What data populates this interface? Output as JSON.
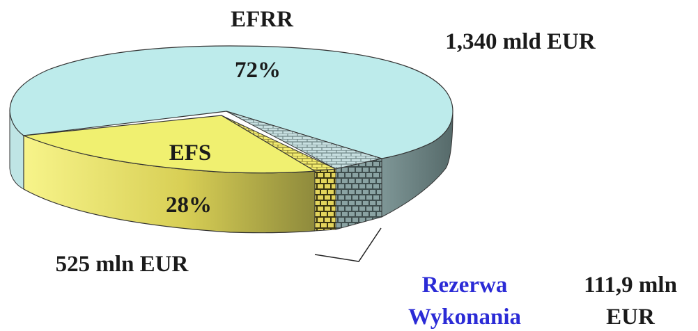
{
  "chart_data": {
    "type": "pie",
    "style": "3d-exploded",
    "slices": [
      {
        "label": "EFRR",
        "percent_label": "72%",
        "amount": "1,340 mld EUR",
        "percent": 72,
        "color": "#bdebeb",
        "side_color": "#5f7575"
      },
      {
        "label": "EFS",
        "percent_label": "28%",
        "amount": "525 mln EUR",
        "percent": 28,
        "color": "#f0f070",
        "side_color": "#c9c24a"
      },
      {
        "label_lines": [
          "Rezerwa",
          "Wykonania"
        ],
        "amount_lines": [
          "111,9 mln",
          "EUR"
        ],
        "percent": 0,
        "color": "#5a6d6d",
        "pattern": "brick",
        "label_color": "#2b2bd6"
      }
    ]
  }
}
